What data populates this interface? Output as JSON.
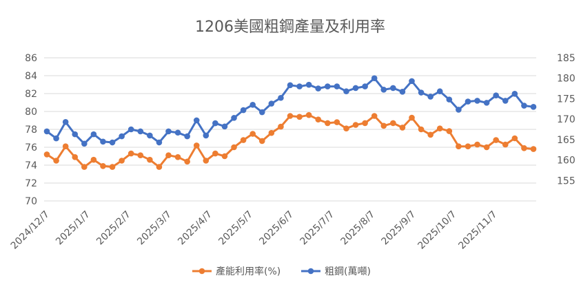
{
  "chart_data": {
    "type": "line",
    "title": "1206美國粗鋼產量及利用率",
    "xlabel": "",
    "ylabel": "",
    "grid": true,
    "legend_position": "bottom",
    "y_left": {
      "ylim": [
        70,
        86
      ],
      "ticks": [
        "70",
        "72",
        "74",
        "76",
        "78",
        "80",
        "82",
        "84",
        "86"
      ]
    },
    "y_right": {
      "ylim": [
        150,
        185
      ],
      "ticks": [
        "155",
        "160",
        "165",
        "170",
        "175",
        "180",
        "185"
      ]
    },
    "x_tick_labels": [
      "2024/12/7",
      "2025/1/7",
      "2025/2/7",
      "2025/3/7",
      "2025/4/7",
      "2025/5/7",
      "2025/6/7",
      "2025/7/7",
      "2025/8/7",
      "2025/9/7",
      "2025/10/7",
      "2025/11/7"
    ],
    "x_tick_every": 4.35,
    "series": [
      {
        "name": "產能利用率(%)",
        "axis": "left",
        "color": "#ED7D31",
        "values": [
          75.2,
          74.5,
          76.1,
          74.9,
          73.8,
          74.6,
          73.9,
          73.8,
          74.5,
          75.3,
          75.1,
          74.6,
          73.8,
          75.1,
          74.9,
          74.4,
          76.2,
          74.5,
          75.3,
          75.0,
          76.0,
          76.8,
          77.5,
          76.7,
          77.6,
          78.3,
          79.5,
          79.4,
          79.6,
          79.1,
          78.7,
          78.8,
          78.1,
          78.5,
          78.7,
          79.5,
          78.4,
          78.7,
          78.2,
          79.3,
          78.0,
          77.4,
          78.1,
          77.8,
          76.1,
          76.1,
          76.3,
          76.0,
          76.8,
          76.3,
          77.0,
          75.9,
          75.8
        ],
        "display_index": null
      },
      {
        "name": "粗鋼(萬噸)",
        "axis": "right",
        "color": "#4472C4",
        "values": [
          167.0,
          165.3,
          169.3,
          166.3,
          164.0,
          166.3,
          164.5,
          164.3,
          165.8,
          167.5,
          167.0,
          166.0,
          164.3,
          167.0,
          166.7,
          165.8,
          169.7,
          166.0,
          169.0,
          168.2,
          170.3,
          172.2,
          173.5,
          171.7,
          173.8,
          175.2,
          178.3,
          178.0,
          178.4,
          177.5,
          178.0,
          178.0,
          176.8,
          177.6,
          178.0,
          180.0,
          177.2,
          177.6,
          176.7,
          179.3,
          176.5,
          175.5,
          176.8,
          174.8,
          172.3,
          174.3,
          174.5,
          174.0,
          175.8,
          174.5,
          176.2,
          173.3,
          173.0
        ]
      }
    ]
  }
}
